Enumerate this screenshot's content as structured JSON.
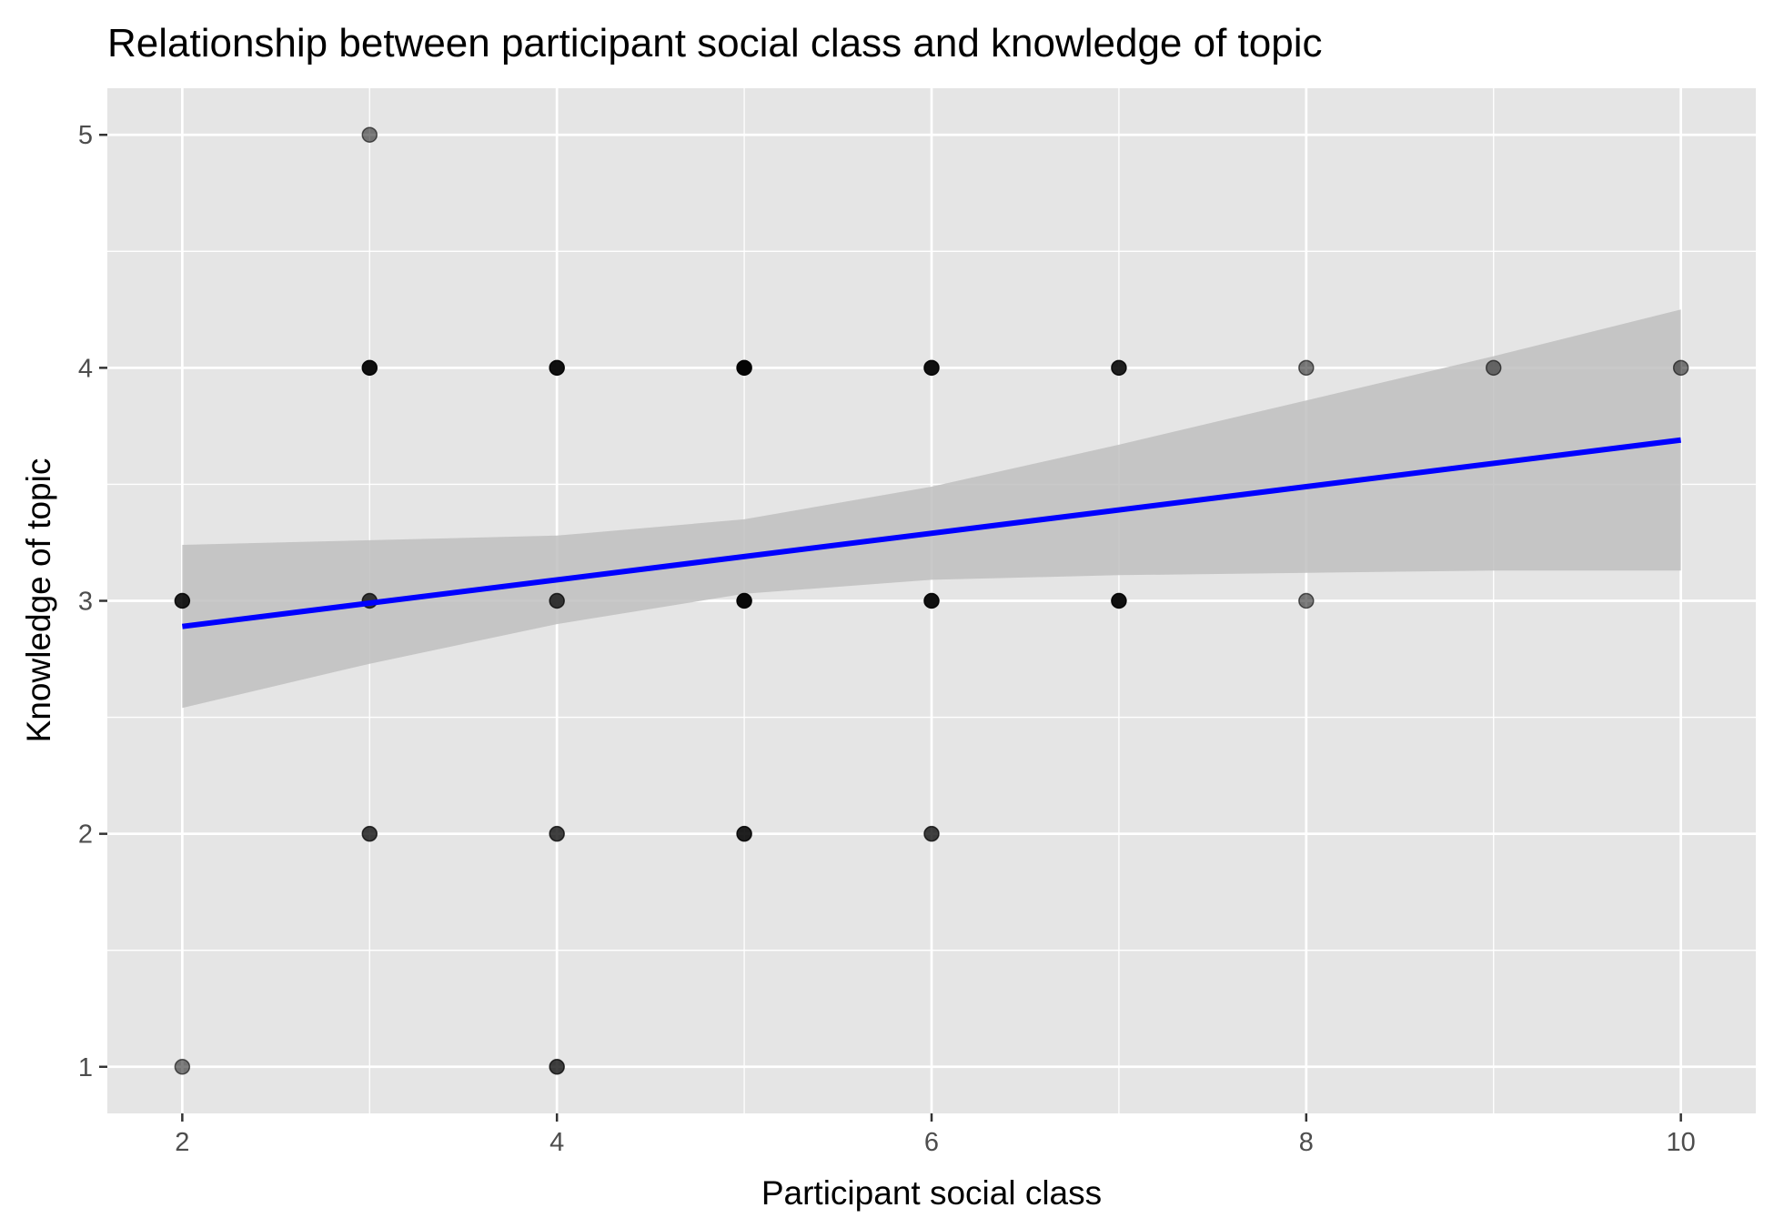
{
  "chart_data": {
    "type": "scatter",
    "title": "Relationship between participant social class and knowledge of topic",
    "xlabel": "Participant social class",
    "ylabel": "Knowledge of topic",
    "xlim": [
      1.6,
      10.4
    ],
    "ylim": [
      0.8,
      5.2
    ],
    "x_ticks": [
      2,
      4,
      6,
      8,
      10
    ],
    "y_ticks": [
      1,
      2,
      3,
      4,
      5
    ],
    "x_tick_labels": [
      "2",
      "4",
      "6",
      "8",
      "10"
    ],
    "y_tick_labels": [
      "1",
      "2",
      "3",
      "4",
      "5"
    ],
    "grid": true,
    "legend": "none",
    "panel_color": "#e5e5e5",
    "grid_color": "#ffffff",
    "point_color": "#000000",
    "fit_color": "#0000ff",
    "band_color": "#bfbfbf",
    "points": [
      {
        "x": 2,
        "y": 1,
        "n": 1
      },
      {
        "x": 2,
        "y": 3,
        "n": 3
      },
      {
        "x": 3,
        "y": 2,
        "n": 2
      },
      {
        "x": 3,
        "y": 3,
        "n": 2
      },
      {
        "x": 3,
        "y": 4,
        "n": 4
      },
      {
        "x": 3,
        "y": 5,
        "n": 1
      },
      {
        "x": 4,
        "y": 1,
        "n": 2
      },
      {
        "x": 4,
        "y": 2,
        "n": 2
      },
      {
        "x": 4,
        "y": 3,
        "n": 2
      },
      {
        "x": 4,
        "y": 4,
        "n": 4
      },
      {
        "x": 5,
        "y": 2,
        "n": 3
      },
      {
        "x": 5,
        "y": 3,
        "n": 5
      },
      {
        "x": 5,
        "y": 4,
        "n": 6
      },
      {
        "x": 6,
        "y": 2,
        "n": 2
      },
      {
        "x": 6,
        "y": 3,
        "n": 4
      },
      {
        "x": 6,
        "y": 4,
        "n": 4
      },
      {
        "x": 7,
        "y": 3,
        "n": 4
      },
      {
        "x": 7,
        "y": 4,
        "n": 3
      },
      {
        "x": 8,
        "y": 3,
        "n": 1
      },
      {
        "x": 8,
        "y": 4,
        "n": 1
      },
      {
        "x": 9,
        "y": 4,
        "n": 1
      },
      {
        "x": 10,
        "y": 4,
        "n": 1
      }
    ],
    "fit_line": {
      "x": [
        2,
        10
      ],
      "y": [
        2.89,
        3.69
      ]
    },
    "confidence_band": {
      "x": [
        2,
        3,
        4,
        5,
        6,
        7,
        8,
        9,
        10
      ],
      "upper": [
        3.24,
        3.26,
        3.28,
        3.35,
        3.49,
        3.67,
        3.86,
        4.05,
        4.25
      ],
      "lower": [
        2.54,
        2.73,
        2.9,
        3.03,
        3.09,
        3.11,
        3.12,
        3.13,
        3.13
      ]
    }
  }
}
